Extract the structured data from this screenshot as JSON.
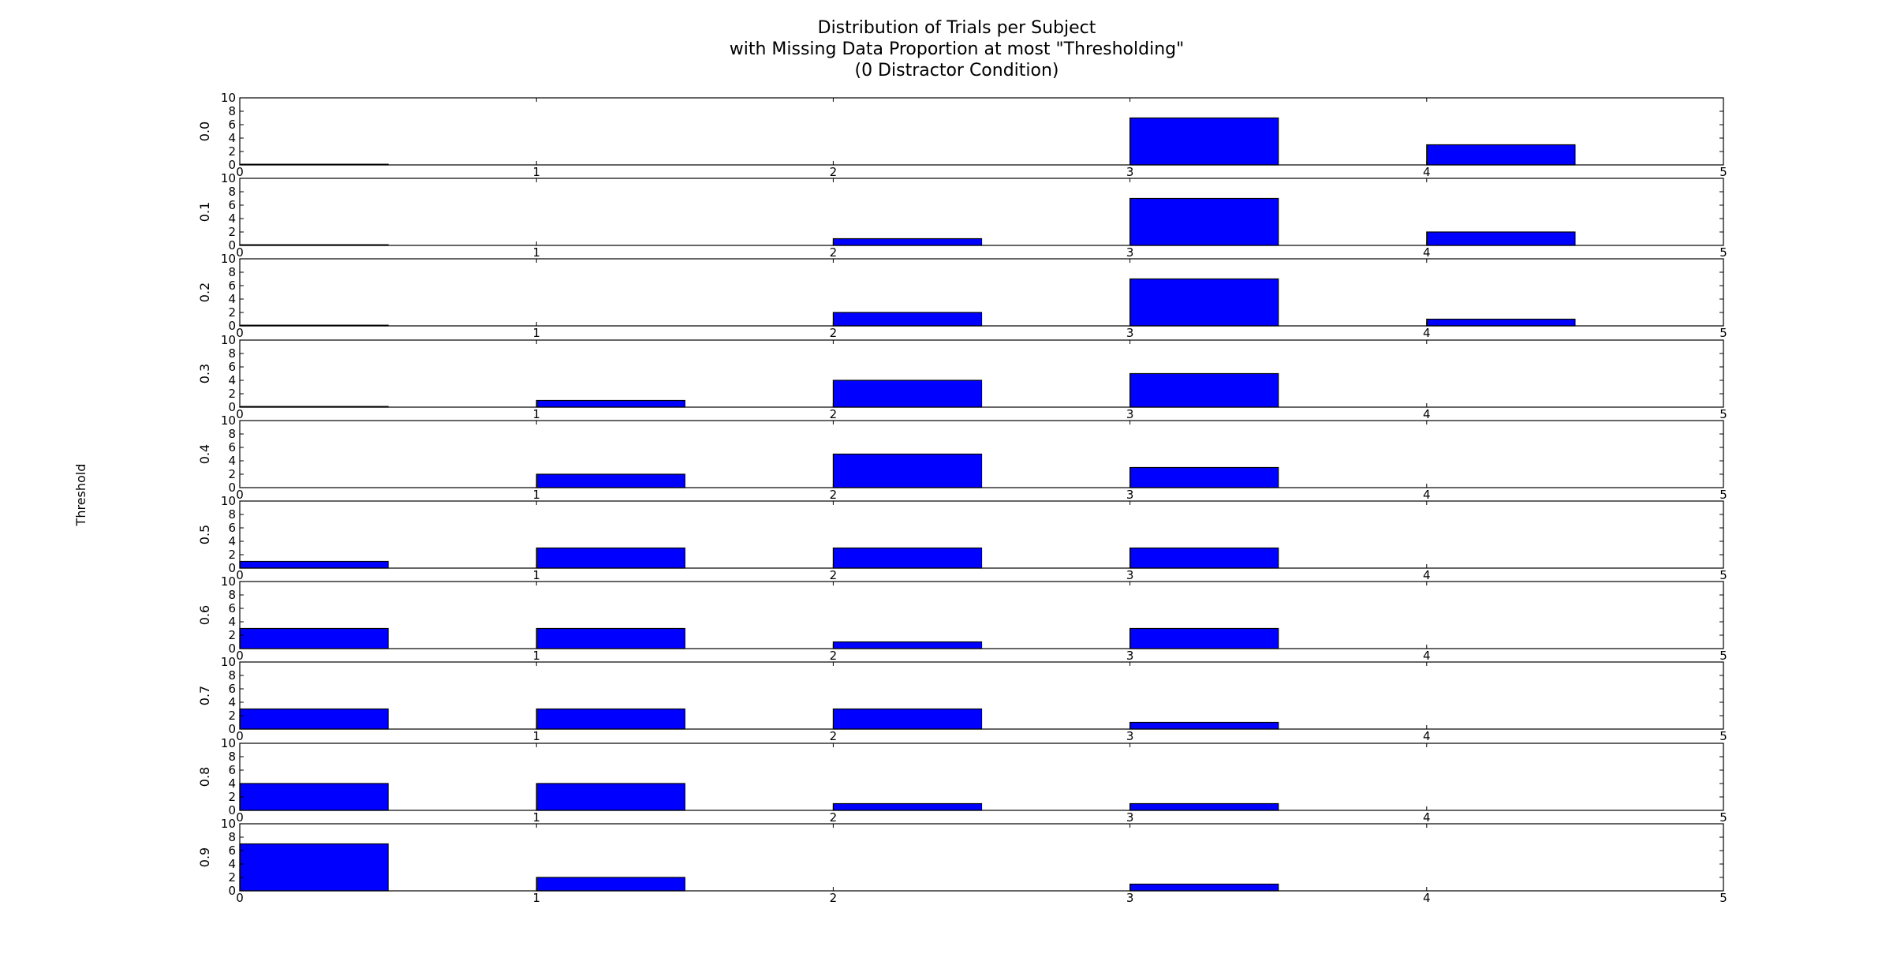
{
  "figure": {
    "title_lines": [
      "Distribution of Trials per Subject",
      "with Missing Data Proportion at most \"Thresholding\"",
      "(0 Distractor Condition)"
    ],
    "ylabel": "Threshold",
    "bar_color": "#0000ff",
    "edge_color": "#000000"
  },
  "chart_data": {
    "type": "bar",
    "subplots_shared": {
      "bin_edges": [
        0,
        0.5,
        1,
        1.5,
        2,
        2.5,
        3,
        3.5,
        4,
        4.5
      ],
      "bar_width": 0.5,
      "xlim": [
        0,
        5
      ],
      "ylim": [
        0,
        10
      ],
      "xticks": [
        "0",
        "1",
        "2",
        "3",
        "4",
        "5"
      ],
      "yticks": [
        "0",
        "2",
        "4",
        "6",
        "8",
        "10"
      ]
    },
    "subplots": [
      {
        "label": "0.0",
        "bars": [
          {
            "x": 0,
            "value": 0.1
          },
          {
            "x": 1,
            "value": 0
          },
          {
            "x": 2,
            "value": 0
          },
          {
            "x": 3,
            "value": 7
          },
          {
            "x": 4,
            "value": 3
          }
        ]
      },
      {
        "label": "0.1",
        "bars": [
          {
            "x": 0,
            "value": 0.1
          },
          {
            "x": 1,
            "value": 0
          },
          {
            "x": 2,
            "value": 1
          },
          {
            "x": 3,
            "value": 7
          },
          {
            "x": 4,
            "value": 2
          }
        ]
      },
      {
        "label": "0.2",
        "bars": [
          {
            "x": 0,
            "value": 0.1
          },
          {
            "x": 1,
            "value": 0
          },
          {
            "x": 2,
            "value": 2
          },
          {
            "x": 3,
            "value": 7
          },
          {
            "x": 4,
            "value": 1
          }
        ]
      },
      {
        "label": "0.3",
        "bars": [
          {
            "x": 0,
            "value": 0.1
          },
          {
            "x": 1,
            "value": 1
          },
          {
            "x": 2,
            "value": 4
          },
          {
            "x": 3,
            "value": 5
          },
          {
            "x": 4,
            "value": 0
          }
        ]
      },
      {
        "label": "0.4",
        "bars": [
          {
            "x": 0,
            "value": 0
          },
          {
            "x": 1,
            "value": 2
          },
          {
            "x": 2,
            "value": 5
          },
          {
            "x": 3,
            "value": 3
          },
          {
            "x": 4,
            "value": 0
          }
        ]
      },
      {
        "label": "0.5",
        "bars": [
          {
            "x": 0,
            "value": 1
          },
          {
            "x": 1,
            "value": 3
          },
          {
            "x": 2,
            "value": 3
          },
          {
            "x": 3,
            "value": 3
          },
          {
            "x": 4,
            "value": 0
          }
        ]
      },
      {
        "label": "0.6",
        "bars": [
          {
            "x": 0,
            "value": 3
          },
          {
            "x": 1,
            "value": 3
          },
          {
            "x": 2,
            "value": 1
          },
          {
            "x": 3,
            "value": 3
          },
          {
            "x": 4,
            "value": 0
          }
        ]
      },
      {
        "label": "0.7",
        "bars": [
          {
            "x": 0,
            "value": 3
          },
          {
            "x": 1,
            "value": 3
          },
          {
            "x": 2,
            "value": 3
          },
          {
            "x": 3,
            "value": 1
          },
          {
            "x": 4,
            "value": 0
          }
        ]
      },
      {
        "label": "0.8",
        "bars": [
          {
            "x": 0,
            "value": 4
          },
          {
            "x": 1,
            "value": 4
          },
          {
            "x": 2,
            "value": 1
          },
          {
            "x": 3,
            "value": 1
          },
          {
            "x": 4,
            "value": 0
          }
        ]
      },
      {
        "label": "0.9",
        "bars": [
          {
            "x": 0,
            "value": 7
          },
          {
            "x": 1,
            "value": 2
          },
          {
            "x": 2,
            "value": 0
          },
          {
            "x": 3,
            "value": 1
          },
          {
            "x": 4,
            "value": 0
          }
        ]
      }
    ]
  }
}
